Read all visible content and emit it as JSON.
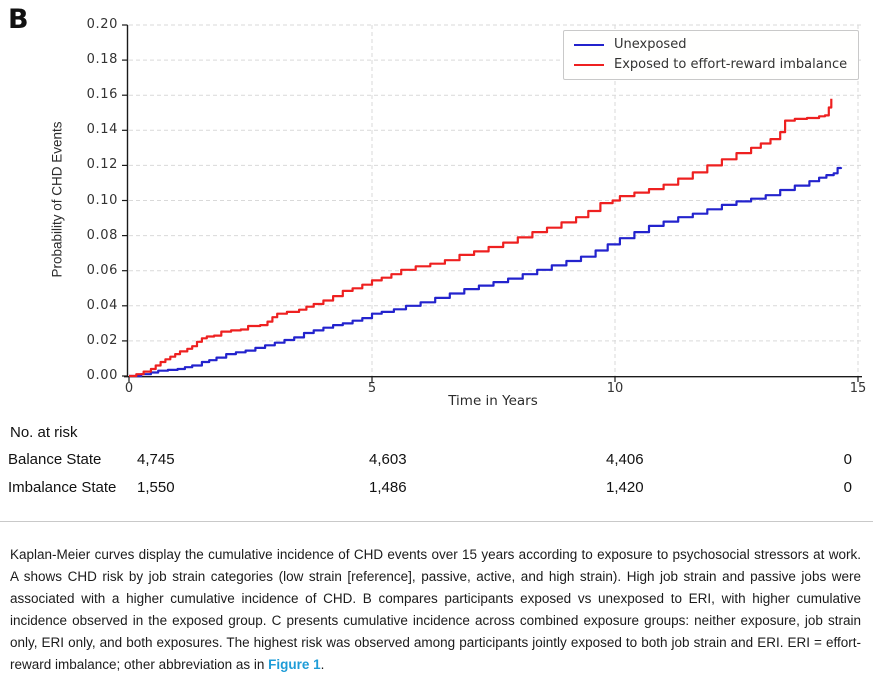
{
  "panel_label": "B",
  "chart_data": {
    "type": "line",
    "subtype": "kaplan-meier-step",
    "xlabel": "Time in Years",
    "ylabel": "Probability of CHD Events",
    "xlim": [
      0,
      15
    ],
    "ylim": [
      0,
      0.2
    ],
    "xticks": [
      0,
      5,
      10,
      15
    ],
    "yticks": [
      0.0,
      0.02,
      0.04,
      0.06,
      0.08,
      0.1,
      0.12,
      0.14,
      0.16,
      0.18,
      0.2
    ],
    "grid": "dashed-lightgray",
    "legend_position": "top-right",
    "series": [
      {
        "name": "Unexposed",
        "color": "#2323cd",
        "points": [
          [
            0,
            0
          ],
          [
            0.25,
            0.001
          ],
          [
            0.45,
            0.002
          ],
          [
            0.6,
            0.003
          ],
          [
            0.8,
            0.0035
          ],
          [
            1.0,
            0.004
          ],
          [
            1.15,
            0.005
          ],
          [
            1.3,
            0.006
          ],
          [
            1.5,
            0.008
          ],
          [
            1.65,
            0.009
          ],
          [
            1.8,
            0.0105
          ],
          [
            2.0,
            0.0125
          ],
          [
            2.2,
            0.0135
          ],
          [
            2.4,
            0.0145
          ],
          [
            2.6,
            0.016
          ],
          [
            2.8,
            0.0175
          ],
          [
            3.0,
            0.019
          ],
          [
            3.2,
            0.0205
          ],
          [
            3.4,
            0.022
          ],
          [
            3.6,
            0.0245
          ],
          [
            3.8,
            0.026
          ],
          [
            4.0,
            0.0275
          ],
          [
            4.2,
            0.029
          ],
          [
            4.4,
            0.03
          ],
          [
            4.6,
            0.0315
          ],
          [
            4.8,
            0.033
          ],
          [
            5.0,
            0.0355
          ],
          [
            5.2,
            0.0365
          ],
          [
            5.45,
            0.038
          ],
          [
            5.7,
            0.04
          ],
          [
            6.0,
            0.042
          ],
          [
            6.3,
            0.0445
          ],
          [
            6.6,
            0.047
          ],
          [
            6.9,
            0.0495
          ],
          [
            7.2,
            0.0515
          ],
          [
            7.5,
            0.0535
          ],
          [
            7.8,
            0.0555
          ],
          [
            8.1,
            0.058
          ],
          [
            8.4,
            0.0605
          ],
          [
            8.7,
            0.063
          ],
          [
            9.0,
            0.0655
          ],
          [
            9.3,
            0.068
          ],
          [
            9.6,
            0.0715
          ],
          [
            9.85,
            0.075
          ],
          [
            10.1,
            0.0785
          ],
          [
            10.4,
            0.082
          ],
          [
            10.7,
            0.0855
          ],
          [
            11.0,
            0.088
          ],
          [
            11.3,
            0.0905
          ],
          [
            11.6,
            0.0925
          ],
          [
            11.9,
            0.095
          ],
          [
            12.2,
            0.0975
          ],
          [
            12.5,
            0.0995
          ],
          [
            12.8,
            0.101
          ],
          [
            13.1,
            0.103
          ],
          [
            13.4,
            0.106
          ],
          [
            13.7,
            0.1085
          ],
          [
            14.0,
            0.111
          ],
          [
            14.2,
            0.113
          ],
          [
            14.35,
            0.1145
          ],
          [
            14.5,
            0.1155
          ],
          [
            14.58,
            0.1185
          ],
          [
            14.65,
            0.119
          ]
        ]
      },
      {
        "name": "Exposed to effort-reward imbalance",
        "color": "#ee2020",
        "points": [
          [
            0,
            0
          ],
          [
            0.15,
            0.001
          ],
          [
            0.3,
            0.0025
          ],
          [
            0.45,
            0.004
          ],
          [
            0.55,
            0.006
          ],
          [
            0.65,
            0.008
          ],
          [
            0.75,
            0.0095
          ],
          [
            0.85,
            0.011
          ],
          [
            0.95,
            0.0125
          ],
          [
            1.05,
            0.014
          ],
          [
            1.2,
            0.0155
          ],
          [
            1.3,
            0.017
          ],
          [
            1.4,
            0.0195
          ],
          [
            1.5,
            0.0215
          ],
          [
            1.6,
            0.0225
          ],
          [
            1.75,
            0.023
          ],
          [
            1.9,
            0.0253
          ],
          [
            2.1,
            0.026
          ],
          [
            2.3,
            0.0265
          ],
          [
            2.45,
            0.0285
          ],
          [
            2.7,
            0.029
          ],
          [
            2.85,
            0.031
          ],
          [
            2.95,
            0.0335
          ],
          [
            3.05,
            0.0355
          ],
          [
            3.25,
            0.0365
          ],
          [
            3.5,
            0.0378
          ],
          [
            3.65,
            0.0395
          ],
          [
            3.8,
            0.041
          ],
          [
            4.0,
            0.043
          ],
          [
            4.2,
            0.0455
          ],
          [
            4.4,
            0.0485
          ],
          [
            4.6,
            0.05
          ],
          [
            4.8,
            0.052
          ],
          [
            5.0,
            0.0545
          ],
          [
            5.2,
            0.056
          ],
          [
            5.4,
            0.058
          ],
          [
            5.6,
            0.0605
          ],
          [
            5.9,
            0.0625
          ],
          [
            6.2,
            0.064
          ],
          [
            6.5,
            0.066
          ],
          [
            6.8,
            0.069
          ],
          [
            7.1,
            0.071
          ],
          [
            7.4,
            0.0735
          ],
          [
            7.7,
            0.076
          ],
          [
            8.0,
            0.079
          ],
          [
            8.3,
            0.082
          ],
          [
            8.6,
            0.0845
          ],
          [
            8.9,
            0.0875
          ],
          [
            9.2,
            0.0905
          ],
          [
            9.45,
            0.094
          ],
          [
            9.7,
            0.0985
          ],
          [
            9.95,
            0.1
          ],
          [
            10.1,
            0.1025
          ],
          [
            10.4,
            0.1045
          ],
          [
            10.7,
            0.1065
          ],
          [
            11.0,
            0.109
          ],
          [
            11.3,
            0.1125
          ],
          [
            11.6,
            0.116
          ],
          [
            11.9,
            0.12
          ],
          [
            12.2,
            0.1235
          ],
          [
            12.5,
            0.127
          ],
          [
            12.8,
            0.13
          ],
          [
            13.0,
            0.1325
          ],
          [
            13.2,
            0.135
          ],
          [
            13.4,
            0.139
          ],
          [
            13.5,
            0.1455
          ],
          [
            13.7,
            0.1465
          ],
          [
            13.95,
            0.147
          ],
          [
            14.2,
            0.148
          ],
          [
            14.32,
            0.1485
          ],
          [
            14.4,
            0.153
          ],
          [
            14.45,
            0.158
          ]
        ]
      }
    ]
  },
  "risk_table": {
    "header": "No. at risk",
    "time_points": [
      0,
      5,
      10,
      15
    ],
    "rows": [
      {
        "label": "Balance State",
        "values": [
          "4,745",
          "4,603",
          "4,406",
          "0"
        ]
      },
      {
        "label": "Imbalance State",
        "values": [
          "1,550",
          "1,486",
          "1,420",
          "0"
        ]
      }
    ]
  },
  "caption": {
    "text_before": "Kaplan-Meier curves display the cumulative incidence of CHD events over 15 years according to exposure to psychosocial stressors at work. A shows CHD risk by job strain categories (low strain [reference], passive, active, and high strain). High job strain and passive jobs were associated with a higher cumulative incidence of CHD. B compares participants exposed vs unexposed to ERI, with higher cumulative incidence observed in the exposed group. C presents cumulative incidence across combined exposure groups: neither exposure, job strain only, ERI only, and both exposures. The highest risk was observed among participants jointly exposed to both job strain and ERI. ERI = effort-reward imbalance; other abbreviation as in ",
    "link_text": "Figure 1",
    "text_after": ".",
    "link_color": "#1e9cd7"
  }
}
